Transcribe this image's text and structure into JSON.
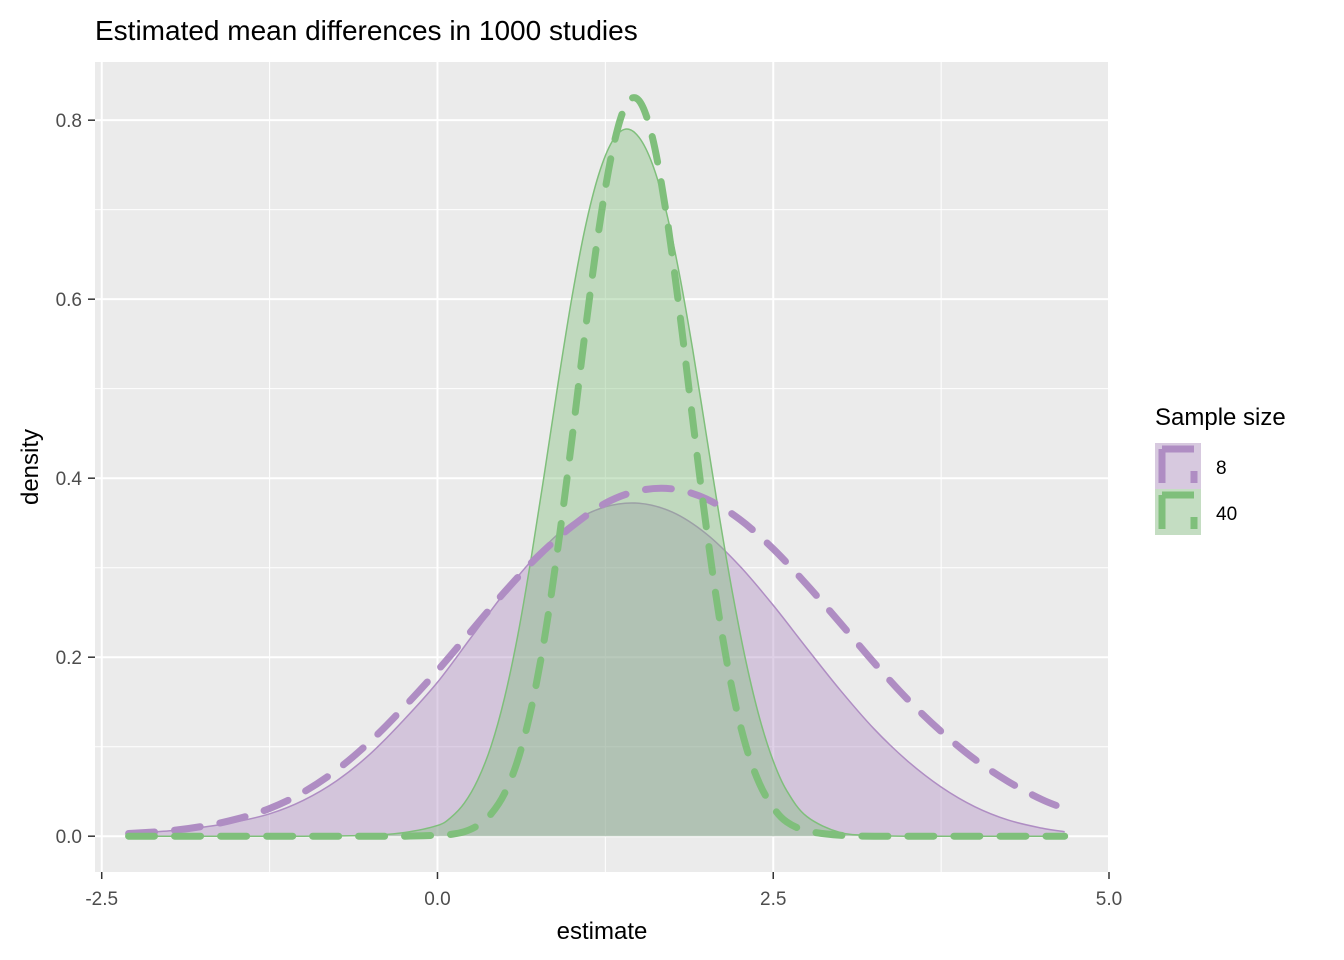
{
  "chart_data": {
    "type": "area",
    "title": "Estimated mean differences in 1000 studies",
    "xlabel": "estimate",
    "ylabel": "density",
    "xlim": [
      -2.55,
      5.0
    ],
    "ylim": [
      -0.04,
      0.865
    ],
    "x_ticks": [
      -2.5,
      0.0,
      2.5,
      5.0
    ],
    "x_tick_labels": [
      "-2.5",
      "0.0",
      "2.5",
      "5.0"
    ],
    "y_ticks": [
      0.0,
      0.2,
      0.4,
      0.6,
      0.8
    ],
    "y_tick_labels": [
      "0.0",
      "0.2",
      "0.4",
      "0.6",
      "0.8"
    ],
    "grid": true,
    "legend": {
      "title": "Sample size",
      "position": "right",
      "entries": [
        "8",
        "40"
      ]
    },
    "colors": {
      "n8": "#af8dc3",
      "n40": "#7fbf7b",
      "panel": "#ebebeb",
      "grid": "#ffffff"
    },
    "series": [
      {
        "name": "8",
        "label": "8",
        "color": "#af8dc3",
        "x": [
          -2.3,
          -2.0,
          -1.75,
          -1.5,
          -1.25,
          -1.0,
          -0.75,
          -0.5,
          -0.25,
          0.0,
          0.25,
          0.5,
          0.75,
          1.0,
          1.25,
          1.5,
          1.75,
          2.0,
          2.25,
          2.5,
          2.75,
          3.0,
          3.25,
          3.5,
          3.75,
          4.0,
          4.25,
          4.5,
          4.67
        ],
        "y": [
          0.003,
          0.006,
          0.01,
          0.016,
          0.025,
          0.04,
          0.062,
          0.092,
          0.13,
          0.172,
          0.222,
          0.272,
          0.316,
          0.35,
          0.368,
          0.372,
          0.362,
          0.338,
          0.302,
          0.258,
          0.21,
          0.163,
          0.12,
          0.084,
          0.055,
          0.033,
          0.018,
          0.009,
          0.005
        ],
        "normal_x": [
          -2.3,
          -2.0,
          -1.75,
          -1.5,
          -1.25,
          -1.0,
          -0.75,
          -0.5,
          -0.25,
          0.0,
          0.25,
          0.5,
          0.75,
          1.0,
          1.25,
          1.5,
          1.75,
          2.0,
          2.25,
          2.5,
          2.75,
          3.0,
          3.25,
          3.5,
          3.75,
          4.0,
          4.25,
          4.5,
          4.67
        ],
        "normal_y": [
          0.003,
          0.006,
          0.011,
          0.019,
          0.031,
          0.049,
          0.074,
          0.106,
          0.144,
          0.185,
          0.229,
          0.273,
          0.313,
          0.346,
          0.372,
          0.386,
          0.388,
          0.377,
          0.354,
          0.321,
          0.281,
          0.238,
          0.194,
          0.153,
          0.117,
          0.086,
          0.061,
          0.041,
          0.031
        ]
      },
      {
        "name": "40",
        "label": "40",
        "color": "#7fbf7b",
        "x": [
          -2.3,
          -1.0,
          -0.5,
          -0.25,
          0.0,
          0.1,
          0.2,
          0.3,
          0.4,
          0.5,
          0.6,
          0.7,
          0.8,
          0.9,
          1.0,
          1.1,
          1.2,
          1.3,
          1.4,
          1.5,
          1.6,
          1.7,
          1.8,
          1.9,
          2.0,
          2.1,
          2.2,
          2.3,
          2.4,
          2.5,
          2.6,
          2.75,
          3.0,
          3.25,
          3.5,
          4.67
        ],
        "y": [
          0.0,
          0.0,
          0.001,
          0.004,
          0.012,
          0.021,
          0.037,
          0.063,
          0.101,
          0.155,
          0.226,
          0.313,
          0.409,
          0.508,
          0.601,
          0.68,
          0.739,
          0.776,
          0.79,
          0.781,
          0.751,
          0.7,
          0.629,
          0.544,
          0.45,
          0.356,
          0.269,
          0.193,
          0.131,
          0.084,
          0.051,
          0.022,
          0.004,
          0.001,
          0.0,
          0.0
        ],
        "normal_x": [
          -2.3,
          -1.0,
          -0.5,
          -0.25,
          0.0,
          0.1,
          0.2,
          0.3,
          0.4,
          0.5,
          0.6,
          0.7,
          0.8,
          0.9,
          1.0,
          1.1,
          1.2,
          1.3,
          1.4,
          1.5,
          1.6,
          1.7,
          1.8,
          1.9,
          2.0,
          2.1,
          2.2,
          2.3,
          2.4,
          2.5,
          2.6,
          2.75,
          3.0,
          3.25,
          3.5,
          4.67
        ],
        "normal_y": [
          0.0,
          0.0,
          0.0,
          0.0,
          0.001,
          0.002,
          0.005,
          0.012,
          0.025,
          0.048,
          0.086,
          0.144,
          0.224,
          0.326,
          0.442,
          0.564,
          0.676,
          0.764,
          0.816,
          0.822,
          0.781,
          0.699,
          0.589,
          0.466,
          0.347,
          0.243,
          0.16,
          0.099,
          0.058,
          0.032,
          0.016,
          0.006,
          0.001,
          0.0,
          0.0,
          0.0
        ]
      }
    ]
  }
}
